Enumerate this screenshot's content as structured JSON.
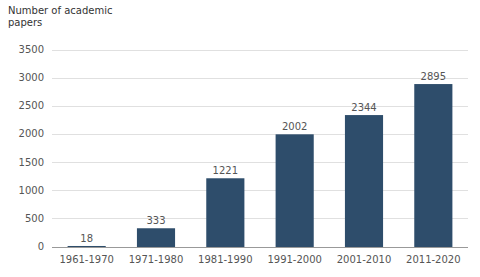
{
  "chart_data": {
    "type": "bar",
    "ylabel": "Number of academic\npapers",
    "categories": [
      "1961-1970",
      "1971-1980",
      "1981-1990",
      "1991-2000",
      "2001-2010",
      "2011-2020"
    ],
    "values": [
      18,
      333,
      1221,
      2002,
      2344,
      2895
    ],
    "color": "#2e4d6b",
    "ylim": [
      0,
      3500
    ],
    "yticks": [
      0,
      500,
      1000,
      1500,
      2000,
      2500,
      3000,
      3500
    ],
    "grid": true,
    "data_labels": true
  }
}
